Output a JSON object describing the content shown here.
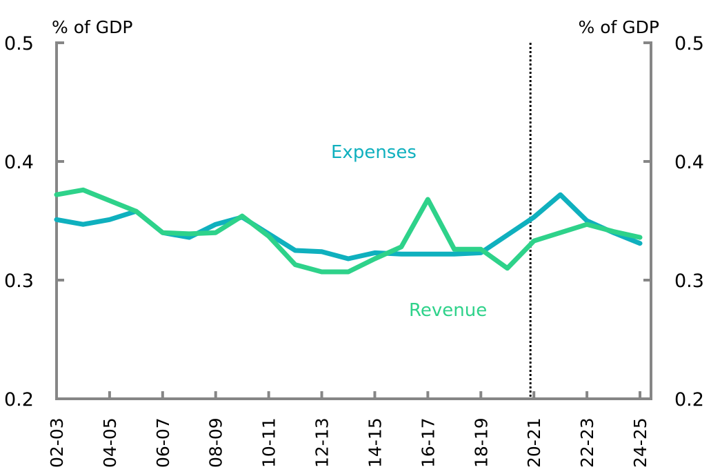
{
  "chart_data": {
    "type": "line",
    "title": "",
    "xlabel": "",
    "ylabel_left": "% of GDP",
    "ylabel_right": "% of GDP",
    "ylim": [
      0.2,
      0.5
    ],
    "y_ticks": [
      "0.2",
      "0.3",
      "0.4",
      "0.5"
    ],
    "y_tick_values": [
      0.2,
      0.3,
      0.4,
      0.5
    ],
    "x": [
      "02-03",
      "03-04",
      "04-05",
      "05-06",
      "06-07",
      "07-08",
      "08-09",
      "09-10",
      "10-11",
      "11-12",
      "12-13",
      "13-14",
      "14-15",
      "15-16",
      "16-17",
      "17-18",
      "18-19",
      "19-20",
      "20-21",
      "21-22",
      "22-23",
      "23-24",
      "24-25"
    ],
    "x_tick_labels": [
      "02-03",
      "04-05",
      "06-07",
      "08-09",
      "10-11",
      "12-13",
      "14-15",
      "16-17",
      "18-19",
      "20-21",
      "22-23",
      "24-25"
    ],
    "projection_marker": "20-21",
    "grid": false,
    "series": [
      {
        "name": "Expenses",
        "color": "#0FB0BE",
        "values": [
          0.351,
          0.347,
          0.351,
          0.358,
          0.34,
          0.336,
          0.347,
          0.353,
          0.339,
          0.325,
          0.324,
          0.318,
          0.323,
          0.322,
          0.322,
          0.322,
          0.323,
          0.338,
          0.353,
          0.372,
          0.35,
          0.34,
          0.331
        ]
      },
      {
        "name": "Revenue",
        "color": "#2ED28A",
        "values": [
          0.372,
          0.376,
          0.367,
          0.358,
          0.34,
          0.339,
          0.34,
          0.354,
          0.337,
          0.313,
          0.307,
          0.307,
          0.318,
          0.328,
          0.368,
          0.326,
          0.326,
          0.31,
          0.333,
          0.34,
          0.347,
          0.341,
          0.336
        ]
      }
    ],
    "annotations": [
      {
        "text": "Expenses",
        "series": "Expenses"
      },
      {
        "text": "Revenue",
        "series": "Revenue"
      }
    ],
    "axis_color": "#868686",
    "marker_line_color": "#000000"
  }
}
